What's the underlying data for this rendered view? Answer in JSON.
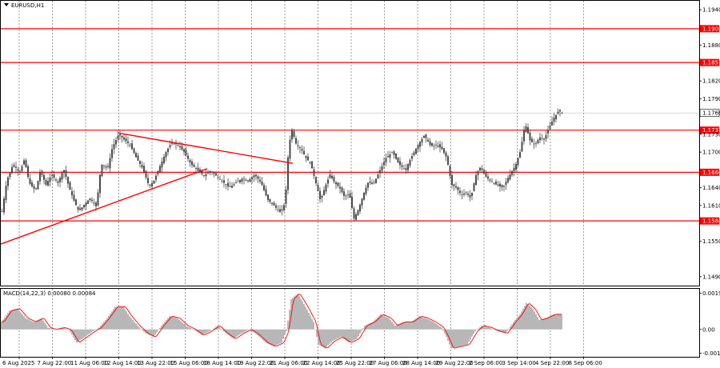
{
  "window": {
    "symbol_title": "EURUSD,H1",
    "menu_icon": "triangle-down-icon"
  },
  "indicator": {
    "title": "MACD(14,22,3) 0.00080 0.00084",
    "axis_ticks": [
      "0.00192",
      "0.00",
      "-0.00126"
    ],
    "axis_values": [
      0.00192,
      0.0,
      -0.00126
    ]
  },
  "colors": {
    "candle": "#4a4a4a",
    "level_line": "#ff0000",
    "trendline": "#ff0000",
    "grid": "#555555",
    "histogram": "#b7b7b7",
    "signal": "#ff0000"
  },
  "chart_data": {
    "type": "candlestick",
    "symbol": "EURUSD",
    "timeframe": "H1",
    "price_axis": {
      "ticks": [
        "1.1940",
        "1.1880",
        "1.1820",
        "1.1790",
        "1.1730",
        "1.1700",
        "1.1640",
        "1.1610",
        "1.1550",
        "1.1490"
      ],
      "tick_values": [
        1.194,
        1.188,
        1.182,
        1.179,
        1.173,
        1.17,
        1.164,
        1.161,
        1.155,
        1.149
      ],
      "ylim": [
        1.1475,
        1.1955
      ]
    },
    "levels": [
      {
        "price": 1.1908,
        "label": "1.1908"
      },
      {
        "price": 1.1851,
        "label": "1.1851"
      },
      {
        "price": 1.1737,
        "label": "1.1737"
      },
      {
        "price": 1.1666,
        "label": "1.1666"
      },
      {
        "price": 1.1584,
        "label": "1.1584"
      }
    ],
    "current_price": {
      "price": 1.1766,
      "label": "1.1766"
    },
    "trendlines": [
      {
        "x1": 0,
        "y1": 1.1545,
        "x2": 258,
        "y2": 1.1672
      },
      {
        "x1": 148,
        "y1": 1.1732,
        "x2": 365,
        "y2": 1.1681
      }
    ],
    "x_axis": {
      "labels": [
        "6 Aug 2025",
        "7 Aug 22:00",
        "11 Aug 06:00",
        "12 Aug 14:00",
        "13 Aug 22:00",
        "15 Aug 06:00",
        "18 Aug 14:00",
        "19 Aug 22:00",
        "21 Aug 06:00",
        "22 Aug 14:00",
        "25 Aug 22:00",
        "27 Aug 06:00",
        "28 Aug 14:00",
        "29 Aug 22:00",
        "2 Sep 06:00",
        "3 Sep 14:00",
        "4 Sep 22:00",
        "8 Sep 06:00"
      ]
    },
    "price_anchors": [
      [
        0,
        1.16
      ],
      [
        6,
        1.1652
      ],
      [
        14,
        1.168
      ],
      [
        22,
        1.1665
      ],
      [
        28,
        1.1688
      ],
      [
        34,
        1.1648
      ],
      [
        42,
        1.1635
      ],
      [
        48,
        1.1668
      ],
      [
        55,
        1.1645
      ],
      [
        62,
        1.1662
      ],
      [
        70,
        1.1648
      ],
      [
        77,
        1.1672
      ],
      [
        84,
        1.164
      ],
      [
        90,
        1.1618
      ],
      [
        96,
        1.16
      ],
      [
        103,
        1.1612
      ],
      [
        110,
        1.1622
      ],
      [
        118,
        1.1608
      ],
      [
        124,
        1.168
      ],
      [
        132,
        1.1672
      ],
      [
        138,
        1.1708
      ],
      [
        146,
        1.173
      ],
      [
        152,
        1.1722
      ],
      [
        160,
        1.1712
      ],
      [
        168,
        1.169
      ],
      [
        176,
        1.1672
      ],
      [
        184,
        1.1642
      ],
      [
        190,
        1.1652
      ],
      [
        198,
        1.1678
      ],
      [
        205,
        1.17
      ],
      [
        212,
        1.1716
      ],
      [
        220,
        1.1712
      ],
      [
        228,
        1.17
      ],
      [
        236,
        1.168
      ],
      [
        244,
        1.167
      ],
      [
        252,
        1.166
      ],
      [
        260,
        1.1668
      ],
      [
        268,
        1.166
      ],
      [
        276,
        1.165
      ],
      [
        284,
        1.164
      ],
      [
        292,
        1.1648
      ],
      [
        300,
        1.1655
      ],
      [
        308,
        1.1652
      ],
      [
        316,
        1.1662
      ],
      [
        324,
        1.1648
      ],
      [
        332,
        1.162
      ],
      [
        340,
        1.161
      ],
      [
        348,
        1.1598
      ],
      [
        354,
        1.1615
      ],
      [
        358,
        1.1702
      ],
      [
        362,
        1.174
      ],
      [
        368,
        1.1712
      ],
      [
        374,
        1.1705
      ],
      [
        380,
        1.169
      ],
      [
        386,
        1.168
      ],
      [
        392,
        1.165
      ],
      [
        398,
        1.1618
      ],
      [
        404,
        1.1642
      ],
      [
        410,
        1.1662
      ],
      [
        416,
        1.1648
      ],
      [
        422,
        1.164
      ],
      [
        428,
        1.1625
      ],
      [
        434,
        1.163
      ],
      [
        440,
        1.1588
      ],
      [
        446,
        1.1605
      ],
      [
        452,
        1.163
      ],
      [
        458,
        1.165
      ],
      [
        464,
        1.1645
      ],
      [
        472,
        1.1668
      ],
      [
        480,
        1.169
      ],
      [
        488,
        1.17
      ],
      [
        496,
        1.168
      ],
      [
        504,
        1.167
      ],
      [
        512,
        1.1692
      ],
      [
        520,
        1.1712
      ],
      [
        528,
        1.1728
      ],
      [
        536,
        1.171
      ],
      [
        544,
        1.1712
      ],
      [
        550,
        1.1705
      ],
      [
        556,
        1.169
      ],
      [
        562,
        1.1645
      ],
      [
        568,
        1.164
      ],
      [
        574,
        1.1628
      ],
      [
        580,
        1.1632
      ],
      [
        586,
        1.1622
      ],
      [
        592,
        1.166
      ],
      [
        598,
        1.1675
      ],
      [
        604,
        1.166
      ],
      [
        610,
        1.1652
      ],
      [
        618,
        1.1645
      ],
      [
        626,
        1.164
      ],
      [
        634,
        1.166
      ],
      [
        642,
        1.1678
      ],
      [
        648,
        1.1702
      ],
      [
        654,
        1.1748
      ],
      [
        660,
        1.172
      ],
      [
        666,
        1.1712
      ],
      [
        672,
        1.1725
      ],
      [
        678,
        1.1722
      ],
      [
        684,
        1.1742
      ],
      [
        690,
        1.1758
      ],
      [
        696,
        1.177
      ],
      [
        700,
        1.1766
      ]
    ],
    "macd_anchors": [
      [
        0,
        0.0004
      ],
      [
        10,
        0.001
      ],
      [
        20,
        0.0011
      ],
      [
        30,
        0.0006
      ],
      [
        40,
        0.0004
      ],
      [
        50,
        0.0006
      ],
      [
        58,
        0.0001
      ],
      [
        66,
        0.0
      ],
      [
        76,
        0.0001
      ],
      [
        84,
        0.0
      ],
      [
        94,
        -0.0007
      ],
      [
        104,
        -0.0004
      ],
      [
        114,
        -0.0001
      ],
      [
        122,
        0.0001
      ],
      [
        132,
        0.0006
      ],
      [
        142,
        0.0012
      ],
      [
        152,
        0.0012
      ],
      [
        160,
        0.0007
      ],
      [
        170,
        0.0002
      ],
      [
        180,
        -0.0002
      ],
      [
        190,
        -0.0004
      ],
      [
        200,
        0.0002
      ],
      [
        210,
        0.0007
      ],
      [
        220,
        0.0006
      ],
      [
        230,
        0.0002
      ],
      [
        240,
        0.0
      ],
      [
        250,
        -0.0003
      ],
      [
        260,
        -0.0001
      ],
      [
        270,
        0.0002
      ],
      [
        280,
        -0.0002
      ],
      [
        290,
        -0.0005
      ],
      [
        300,
        -0.0002
      ],
      [
        310,
        0.0
      ],
      [
        320,
        -0.0003
      ],
      [
        330,
        -0.0007
      ],
      [
        340,
        -0.0009
      ],
      [
        350,
        -0.0007
      ],
      [
        356,
        -0.0001
      ],
      [
        362,
        0.0016
      ],
      [
        370,
        0.0019
      ],
      [
        380,
        0.0012
      ],
      [
        390,
        0.0004
      ],
      [
        396,
        -0.0008
      ],
      [
        404,
        -0.001
      ],
      [
        414,
        -0.0006
      ],
      [
        424,
        -0.0004
      ],
      [
        434,
        -0.0007
      ],
      [
        444,
        -0.0005
      ],
      [
        454,
        0.0002
      ],
      [
        464,
        0.0004
      ],
      [
        474,
        0.0008
      ],
      [
        484,
        0.0006
      ],
      [
        492,
        0.0002
      ],
      [
        502,
        0.0004
      ],
      [
        512,
        0.0004
      ],
      [
        522,
        0.0007
      ],
      [
        530,
        0.0006
      ],
      [
        540,
        0.0004
      ],
      [
        550,
        0.0001
      ],
      [
        556,
        -0.0004
      ],
      [
        562,
        -0.001
      ],
      [
        572,
        -0.0009
      ],
      [
        582,
        -0.0008
      ],
      [
        592,
        -0.0001
      ],
      [
        600,
        0.0002
      ],
      [
        610,
        0.0001
      ],
      [
        620,
        -0.0001
      ],
      [
        630,
        -0.0002
      ],
      [
        640,
        0.0004
      ],
      [
        648,
        0.0008
      ],
      [
        656,
        0.0014
      ],
      [
        664,
        0.0011
      ],
      [
        672,
        0.0005
      ],
      [
        680,
        0.0006
      ],
      [
        690,
        0.0008
      ],
      [
        700,
        0.0008
      ]
    ]
  }
}
